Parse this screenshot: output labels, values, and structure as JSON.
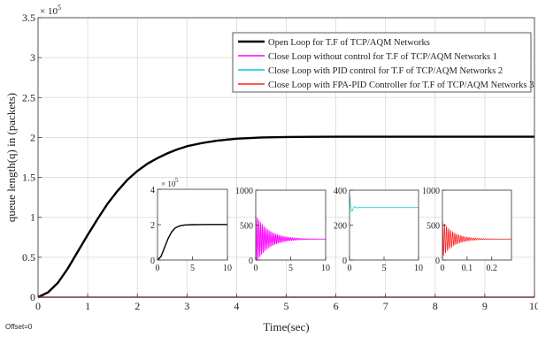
{
  "chart_data": [
    {
      "type": "line",
      "title": "",
      "xlabel": "Time(sec)",
      "ylabel": "queue length(q) in (packets)",
      "xlim": [
        0,
        10
      ],
      "ylim": [
        0,
        350000
      ],
      "x_ticks": [
        "0",
        "1",
        "2",
        "3",
        "4",
        "5",
        "6",
        "7",
        "8",
        "9",
        "10"
      ],
      "y_ticks": [
        "0",
        "0.5",
        "1",
        "1.5",
        "2",
        "2.5",
        "3",
        "3.5"
      ],
      "y_exponent": "× 10",
      "y_exponent_power": "5",
      "grid": true,
      "legend_position": "top-right",
      "series": [
        {
          "name": "Open Loop for T.F of TCP/AQM Networks",
          "color": "#000000",
          "x": [
            0,
            0.2,
            0.4,
            0.6,
            0.8,
            1.0,
            1.2,
            1.4,
            1.6,
            1.8,
            2.0,
            2.2,
            2.4,
            2.6,
            2.8,
            3.0,
            3.3,
            3.6,
            4.0,
            4.5,
            5.0,
            5.5,
            6.0,
            7.0,
            8.0,
            9.0,
            10.0
          ],
          "y": [
            0,
            6000,
            18000,
            36000,
            57000,
            78000,
            98000,
            117000,
            133000,
            147000,
            158000,
            167000,
            174000,
            180000,
            185000,
            189000,
            193000,
            196000,
            198500,
            200000,
            200500,
            200800,
            201000,
            201000,
            201000,
            201000,
            201000
          ]
        },
        {
          "name": "Close Loop without control  for  T.F of TCP/AQM Networks 1",
          "color": "#ff00ff",
          "x": [
            0,
            10
          ],
          "y": [
            0,
            0
          ]
        },
        {
          "name": "Close Loop with PID control  for  T.F of TCP/AQM Networks 2",
          "color": "#00cccc",
          "x": [
            0,
            10
          ],
          "y": [
            0,
            0
          ]
        },
        {
          "name": "Close Loop with FPA-PID Controller for T.F of TCP/AQM Networks 3",
          "color": "#ff2020",
          "x": [
            0,
            10
          ],
          "y": [
            0,
            0
          ]
        }
      ]
    },
    {
      "type": "line",
      "title": "",
      "xlim": [
        0,
        10
      ],
      "ylim": [
        0,
        400000
      ],
      "x_ticks": [
        "0",
        "5",
        "10"
      ],
      "y_ticks": [
        "0",
        "2",
        "4"
      ],
      "y_exponent": "× 10",
      "y_exponent_power": "5",
      "series": [
        {
          "color": "#000000",
          "x": [
            0,
            0.5,
            1,
            1.5,
            2,
            2.5,
            3,
            3.5,
            4,
            5,
            6,
            7,
            8,
            10
          ],
          "y": [
            0,
            20000,
            70000,
            120000,
            158000,
            180000,
            191000,
            196000,
            198500,
            200000,
            200500,
            201000,
            201000,
            201000
          ]
        }
      ]
    },
    {
      "type": "line",
      "title": "",
      "xlim": [
        0,
        10
      ],
      "ylim": [
        0,
        1000
      ],
      "x_ticks": [
        "0",
        "5",
        "10"
      ],
      "y_ticks": [
        "0",
        "500",
        "1000"
      ],
      "damped_response": {
        "final": 300,
        "first_peak": 650,
        "decay_per_sec": 0.55,
        "cycles_per_sec": 4.2,
        "t_end": 10
      },
      "series": [
        {
          "color": "#ff00ff"
        }
      ]
    },
    {
      "type": "line",
      "title": "",
      "xlim": [
        0,
        10
      ],
      "ylim": [
        0,
        400
      ],
      "x_ticks": [
        "0",
        "5",
        "10"
      ],
      "y_ticks": [
        "0",
        "200",
        "400"
      ],
      "damped_response": {
        "final": 300,
        "first_peak": 375,
        "decay_per_sec": 3.5,
        "cycles_per_sec": 1.3,
        "t_end": 10
      },
      "series": [
        {
          "color": "#00cccc"
        }
      ]
    },
    {
      "type": "line",
      "title": "",
      "xlim": [
        0,
        0.28
      ],
      "ylim": [
        0,
        1000
      ],
      "x_ticks": [
        "0",
        "0.1",
        "0.2"
      ],
      "y_ticks": [
        "0",
        "500",
        "1000"
      ],
      "damped_response": {
        "final": 300,
        "first_peak": 560,
        "decay_per_sec": 22,
        "cycles_per_sec": 120,
        "t_end": 0.28
      },
      "series": [
        {
          "color": "#ff2020"
        }
      ]
    }
  ],
  "offset_label": "Offset=0"
}
